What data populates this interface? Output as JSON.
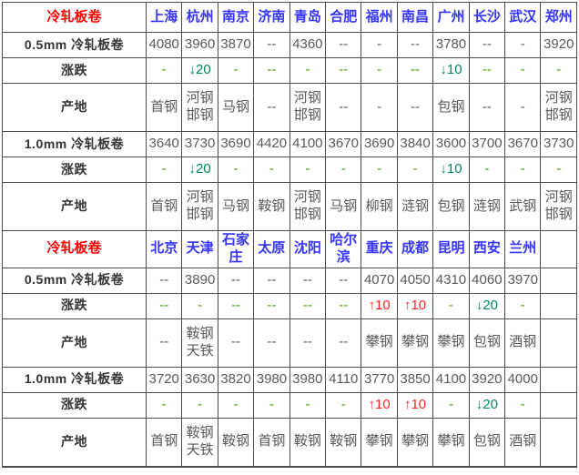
{
  "colors": {
    "border": "#4d4d4d",
    "red": "#ff0000",
    "city": "#3535ff",
    "value": "#595959",
    "up": "#ff2222",
    "down": "#008855",
    "flat": "#4a9900"
  },
  "table": {
    "sections": [
      {
        "title": "冷轧板卷",
        "cities": [
          "上海",
          "杭州",
          "南京",
          "济南",
          "青岛",
          "合肥",
          "福州",
          "南昌",
          "广州",
          "长沙",
          "武汉",
          "郑州"
        ],
        "rows": [
          {
            "label": "0.5mm 冷轧板卷",
            "type": "price",
            "values": [
              "4080",
              "3960",
              "3870",
              "--",
              "4360",
              "--",
              "-",
              "--",
              "3780",
              "--",
              "-",
              "3920"
            ]
          },
          {
            "label": "涨跌",
            "type": "change",
            "values": [
              "-",
              "↓20",
              "-",
              "--",
              "-",
              "--",
              "-",
              "--",
              "↓10",
              "--",
              "-",
              "-"
            ]
          },
          {
            "label": "产地",
            "type": "origin",
            "values": [
              "首钢",
              "河钢邯钢",
              "马钢",
              "--",
              "河钢邯钢",
              "--",
              "-",
              "--",
              "包钢",
              "--",
              "-",
              "河钢邯钢"
            ]
          },
          {
            "label": "1.0mm 冷轧板卷",
            "type": "price",
            "values": [
              "3640",
              "3730",
              "3690",
              "4420",
              "4100",
              "3670",
              "3690",
              "3840",
              "3600",
              "3700",
              "3670",
              "3730"
            ]
          },
          {
            "label": "涨跌",
            "type": "change",
            "values": [
              "-",
              "↓20",
              "-",
              "-",
              "-",
              "-",
              "-",
              "-",
              "↓10",
              "-",
              "-",
              "-"
            ]
          },
          {
            "label": "产地",
            "type": "origin",
            "values": [
              "首钢",
              "河钢邯钢",
              "马钢",
              "鞍钢",
              "河钢邯钢",
              "马钢",
              "柳钢",
              "涟钢",
              "包钢",
              "涟钢",
              "武钢",
              "河钢邯钢"
            ]
          }
        ]
      },
      {
        "title": "冷轧板卷",
        "cities": [
          "北京",
          "天津",
          "石家庄",
          "太原",
          "沈阳",
          "哈尔滨",
          "重庆",
          "成都",
          "昆明",
          "西安",
          "兰州",
          ""
        ],
        "rows": [
          {
            "label": "0.5mm 冷轧板卷",
            "type": "price",
            "values": [
              "--",
              "3890",
              "--",
              "--",
              "--",
              "--",
              "4070",
              "4050",
              "4310",
              "4060",
              "3970",
              ""
            ]
          },
          {
            "label": "涨跌",
            "type": "change",
            "values": [
              "--",
              "-",
              "--",
              "--",
              "--",
              "--",
              "↑10",
              "↑10",
              "-",
              "↓20",
              "-",
              ""
            ]
          },
          {
            "label": "产地",
            "type": "origin",
            "values": [
              "--",
              "鞍钢天铁",
              "--",
              "--",
              "--",
              "--",
              "攀钢",
              "攀钢",
              "攀钢",
              "包钢",
              "酒钢",
              ""
            ]
          },
          {
            "label": "1.0mm 冷轧板卷",
            "type": "price",
            "values": [
              "3720",
              "3630",
              "3820",
              "3980",
              "3980",
              "4110",
              "3770",
              "3850",
              "4100",
              "3920",
              "4000",
              ""
            ]
          },
          {
            "label": "涨跌",
            "type": "change",
            "values": [
              "-",
              "-",
              "-",
              "-",
              "-",
              "-",
              "↑10",
              "↑10",
              "-",
              "↓20",
              "-",
              ""
            ]
          },
          {
            "label": "产地",
            "type": "origin",
            "values": [
              "首钢",
              "鞍钢天铁",
              "鞍钢",
              "首钢",
              "鞍钢",
              "鞍钢",
              "攀钢",
              "攀钢",
              "攀钢",
              "包钢",
              "酒钢",
              ""
            ]
          }
        ]
      }
    ]
  }
}
